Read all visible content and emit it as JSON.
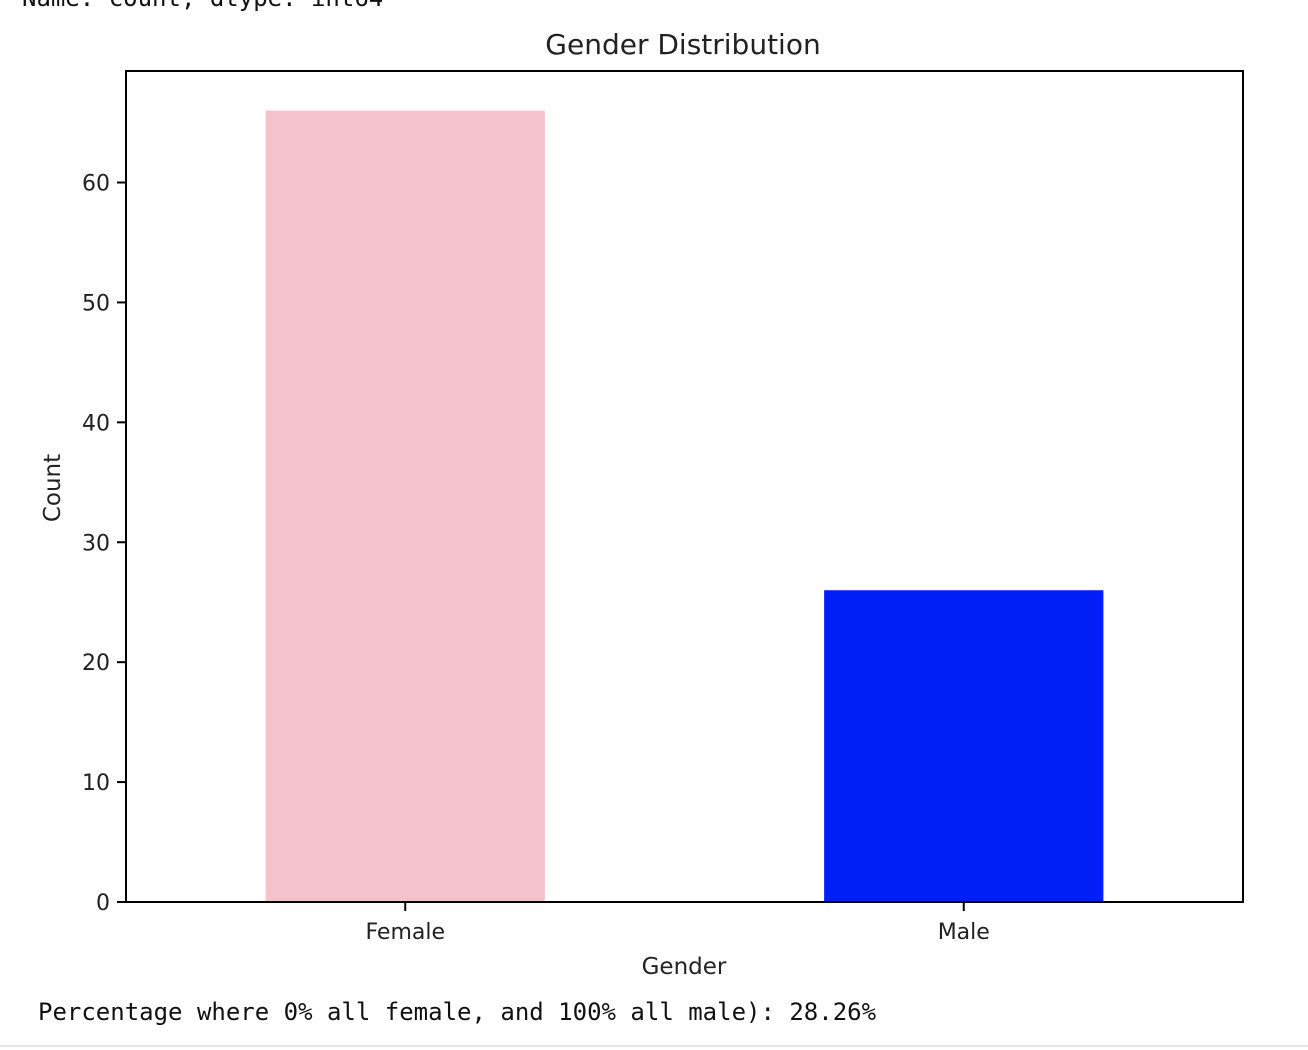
{
  "output": {
    "top_text": "Name: count, dtype: int64",
    "bottom_text": "Percentage where 0% all female, and 100% all male): 28.26%"
  },
  "chart_data": {
    "type": "bar",
    "title": "Gender Distribution",
    "xlabel": "Gender",
    "ylabel": "Count",
    "categories": [
      "Female",
      "Male"
    ],
    "values": [
      66,
      26
    ],
    "colors": [
      "#f4c2cc",
      "#001ef6"
    ],
    "ylim": [
      0,
      69.3
    ],
    "yticks": [
      0,
      10,
      20,
      30,
      40,
      50,
      60
    ],
    "grid": false,
    "legend": "none"
  }
}
